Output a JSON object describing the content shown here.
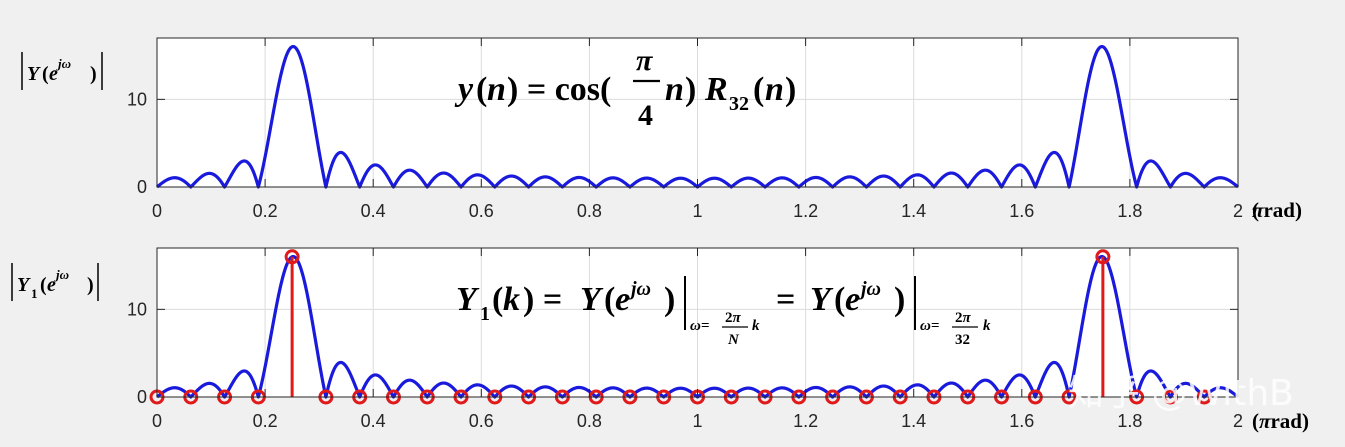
{
  "chart_data": [
    {
      "type": "line",
      "title": "",
      "ylabel_text": "|Y(e^{jω})|",
      "formula_text": "y(n) = cos(π/4 n) R32(n)",
      "xlabel": "(πrad)",
      "xlim": [
        0,
        2
      ],
      "ylim": [
        0,
        17
      ],
      "xticks": [
        "0",
        "0.2",
        "0.4",
        "0.6",
        "0.8",
        "1",
        "1.2",
        "1.4",
        "1.6",
        "1.8",
        "2"
      ],
      "yticks": [
        "0",
        "10"
      ],
      "grid": true,
      "signal": {
        "N": 32,
        "omega0": 0.25
      },
      "series": [
        {
          "values_kind": "|DTFT| of 32-point cosine",
          "color": "#1a1adc"
        }
      ]
    },
    {
      "type": "line",
      "title": "",
      "ylabel_text": "|Y1(e^{jω})|",
      "formula_text": "Y1(k) = Y(e^{jω}) |ω=2π/N k = Y(e^{jω}) |ω=2π/32 k",
      "xlabel": "(πrad)",
      "xlim": [
        0,
        2
      ],
      "ylim": [
        0,
        17
      ],
      "xticks": [
        "0",
        "0.2",
        "0.4",
        "0.6",
        "0.8",
        "1",
        "1.2",
        "1.4",
        "1.6",
        "1.8",
        "2"
      ],
      "yticks": [
        "0",
        "10"
      ],
      "grid": true,
      "signal": {
        "N": 32,
        "omega0": 0.25
      },
      "series": [
        {
          "values_kind": "|DTFT| of 32-point cosine",
          "color": "#1a1adc"
        },
        {
          "type": "stem",
          "color": "#e01a1a",
          "x": [
            0,
            0.0625,
            0.125,
            0.1875,
            0.25,
            0.3125,
            0.375,
            0.4375,
            0.5,
            0.5625,
            0.625,
            0.6875,
            0.75,
            0.8125,
            0.875,
            0.9375,
            1,
            1.0625,
            1.125,
            1.1875,
            1.25,
            1.3125,
            1.375,
            1.4375,
            1.5,
            1.5625,
            1.625,
            1.6875,
            1.75,
            1.8125,
            1.875,
            1.9375
          ],
          "values": [
            0,
            0,
            0,
            0,
            16,
            0,
            0,
            0,
            0,
            0,
            0,
            0,
            0,
            0,
            0,
            0,
            0,
            0,
            0,
            0,
            0,
            0,
            0,
            0,
            0,
            0,
            0,
            0,
            16,
            0,
            0,
            0
          ]
        }
      ]
    }
  ],
  "watermark": "知乎 @WithB",
  "colors": {
    "axes_bg": "#ffffff",
    "grid": "#dcdcdc",
    "axis": "#262626"
  }
}
